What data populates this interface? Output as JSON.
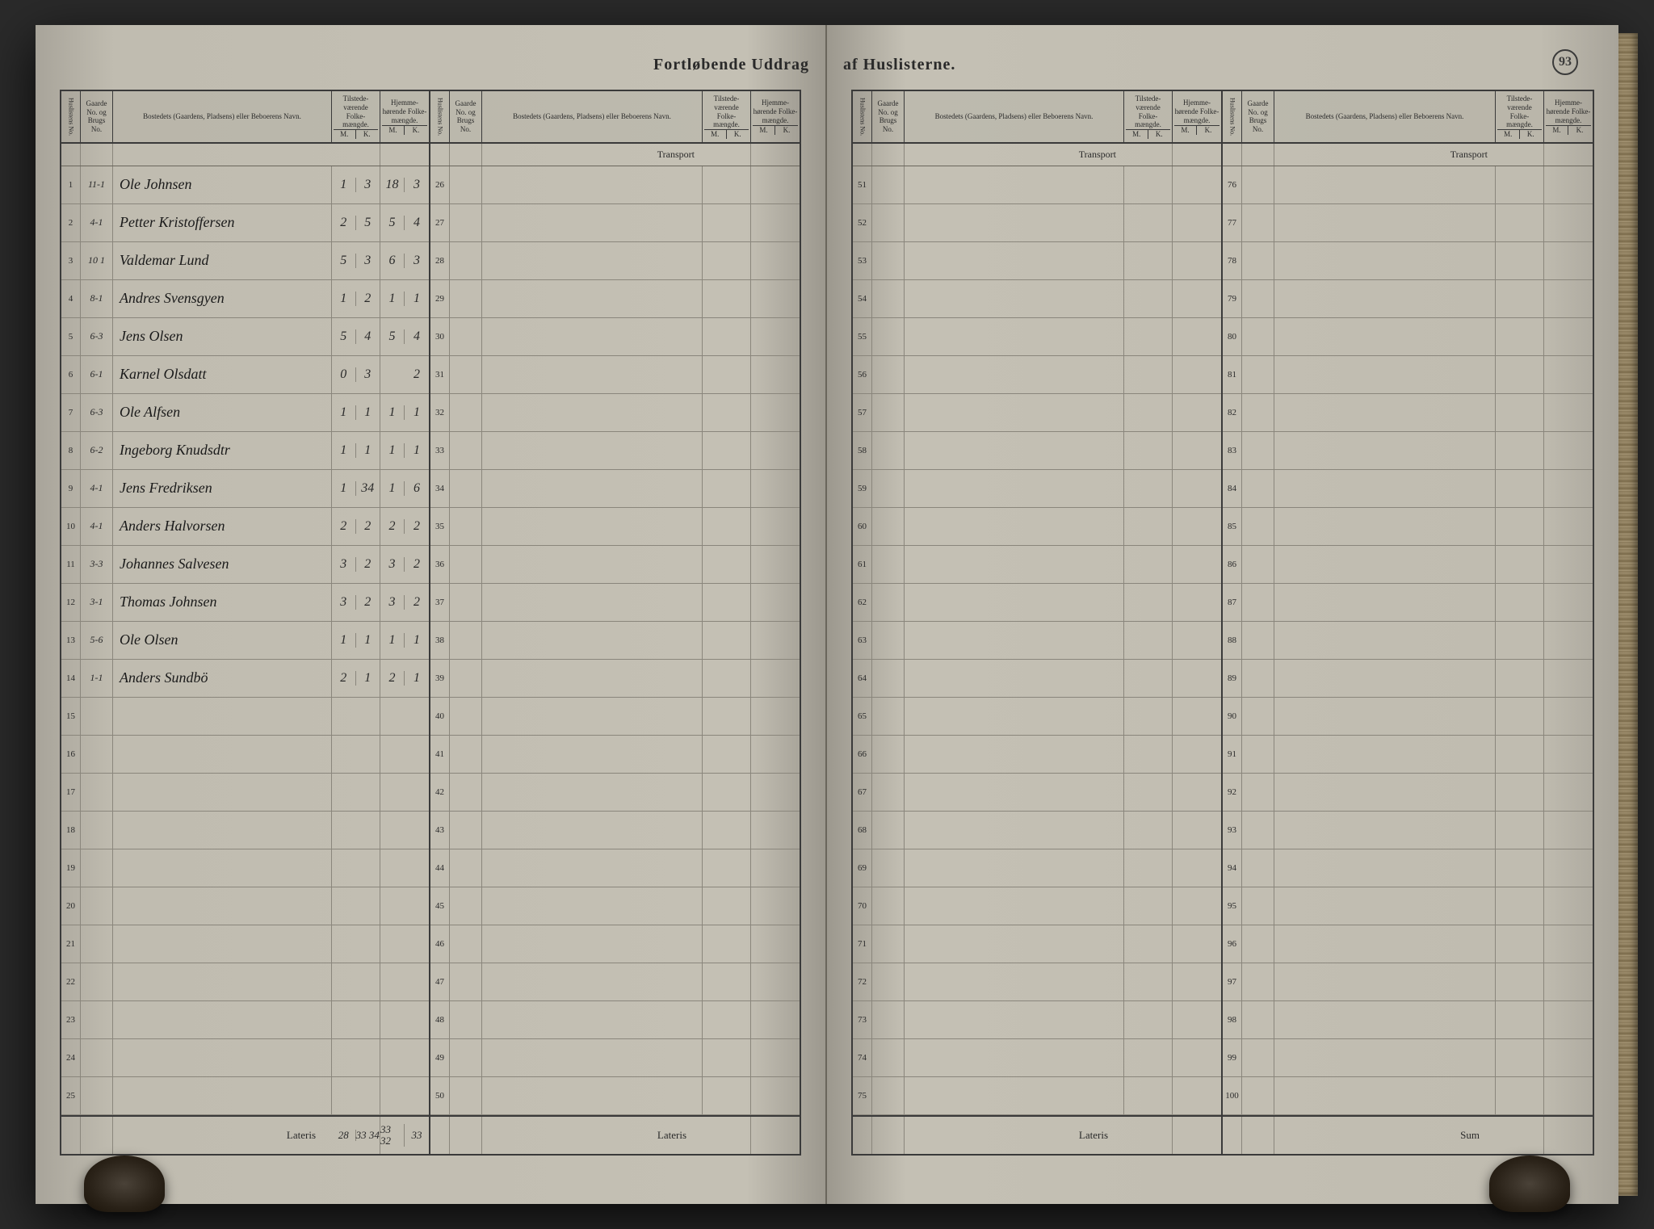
{
  "page_number": "93",
  "title_left": "Fortløbende Uddrag",
  "title_right": "af Huslisterne.",
  "headers": {
    "husl": "Huslistens No.",
    "gaarde": "Gaarde No. og Brugs No.",
    "name": "Bostedets (Gaardens, Pladsens) eller Beboerens Navn.",
    "tilstede": "Tilstede-værende Folke-mængde.",
    "hjemme": "Hjemme-hørende Folke-mængde.",
    "m": "M.",
    "k": "K."
  },
  "transport": "Transport",
  "lateris": "Lateris",
  "sum": "Sum",
  "col1_rows": [
    {
      "n": "1",
      "g": "11-1",
      "name": "Ole Johnsen",
      "tm": "1",
      "tk": "3",
      "hm": "18",
      "hk": "3"
    },
    {
      "n": "2",
      "g": "4-1",
      "name": "Petter Kristoffersen",
      "tm": "2",
      "tk": "5",
      "hm": "5",
      "hk": "4"
    },
    {
      "n": "3",
      "g": "10 1",
      "name": "Valdemar Lund",
      "tm": "5",
      "tk": "3",
      "hm": "6",
      "hk": "3"
    },
    {
      "n": "4",
      "g": "8-1",
      "name": "Andres Svensgyen",
      "tm": "1",
      "tk": "2",
      "hm": "1",
      "hk": "1"
    },
    {
      "n": "5",
      "g": "6-3",
      "name": "Jens Olsen",
      "tm": "5",
      "tk": "4",
      "hm": "5",
      "hk": "4"
    },
    {
      "n": "6",
      "g": "6-1",
      "name": "Karnel Olsdatt",
      "tm": "0",
      "tk": "3",
      "hm": "",
      "hk": "2"
    },
    {
      "n": "7",
      "g": "6-3",
      "name": "Ole Alfsen",
      "tm": "1",
      "tk": "1",
      "hm": "1",
      "hk": "1"
    },
    {
      "n": "8",
      "g": "6-2",
      "name": "Ingeborg Knudsdtr",
      "tm": "1",
      "tk": "1",
      "hm": "1",
      "hk": "1"
    },
    {
      "n": "9",
      "g": "4-1",
      "name": "Jens Fredriksen",
      "tm": "1",
      "tk": "34",
      "hm": "1",
      "hk": "6"
    },
    {
      "n": "10",
      "g": "4-1",
      "name": "Anders Halvorsen",
      "tm": "2",
      "tk": "2",
      "hm": "2",
      "hk": "2"
    },
    {
      "n": "11",
      "g": "3-3",
      "name": "Johannes Salvesen",
      "tm": "3",
      "tk": "2",
      "hm": "3",
      "hk": "2"
    },
    {
      "n": "12",
      "g": "3-1",
      "name": "Thomas Johnsen",
      "tm": "3",
      "tk": "2",
      "hm": "3",
      "hk": "2"
    },
    {
      "n": "13",
      "g": "5-6",
      "name": "Ole Olsen",
      "tm": "1",
      "tk": "1",
      "hm": "1",
      "hk": "1"
    },
    {
      "n": "14",
      "g": "1-1",
      "name": "Anders Sundbö",
      "tm": "2",
      "tk": "1",
      "hm": "2",
      "hk": "1"
    },
    {
      "n": "15",
      "g": "",
      "name": "",
      "tm": "",
      "tk": "",
      "hm": "",
      "hk": ""
    },
    {
      "n": "16",
      "g": "",
      "name": "",
      "tm": "",
      "tk": "",
      "hm": "",
      "hk": ""
    },
    {
      "n": "17",
      "g": "",
      "name": "",
      "tm": "",
      "tk": "",
      "hm": "",
      "hk": ""
    },
    {
      "n": "18",
      "g": "",
      "name": "",
      "tm": "",
      "tk": "",
      "hm": "",
      "hk": ""
    },
    {
      "n": "19",
      "g": "",
      "name": "",
      "tm": "",
      "tk": "",
      "hm": "",
      "hk": ""
    },
    {
      "n": "20",
      "g": "",
      "name": "",
      "tm": "",
      "tk": "",
      "hm": "",
      "hk": ""
    },
    {
      "n": "21",
      "g": "",
      "name": "",
      "tm": "",
      "tk": "",
      "hm": "",
      "hk": ""
    },
    {
      "n": "22",
      "g": "",
      "name": "",
      "tm": "",
      "tk": "",
      "hm": "",
      "hk": ""
    },
    {
      "n": "23",
      "g": "",
      "name": "",
      "tm": "",
      "tk": "",
      "hm": "",
      "hk": ""
    },
    {
      "n": "24",
      "g": "",
      "name": "",
      "tm": "",
      "tk": "",
      "hm": "",
      "hk": ""
    },
    {
      "n": "25",
      "g": "",
      "name": "",
      "tm": "",
      "tk": "",
      "hm": "",
      "hk": ""
    }
  ],
  "col1_totals": {
    "tm": "28",
    "tk": "33 34",
    "hm": "33 32",
    "hk": "33"
  },
  "col2_start": 26,
  "col3_start": 51,
  "col4_start": 76,
  "colors": {
    "paper": "#c2beb2",
    "ink": "#2a2a2a",
    "rule": "#3a3a3a",
    "light_rule": "#8a867c"
  }
}
